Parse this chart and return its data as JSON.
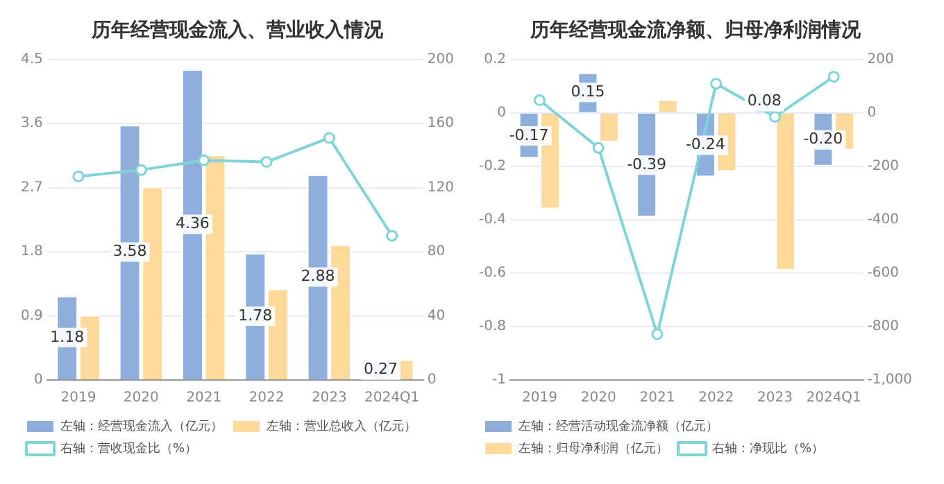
{
  "chart_data": [
    {
      "type": "bar",
      "title": "历年经营现金流入、营业收入情况",
      "categories": [
        "2019",
        "2020",
        "2021",
        "2022",
        "2023",
        "2024Q1"
      ],
      "series": [
        {
          "name": "左轴：经营现金流入（亿元）",
          "color": "#8eaedc",
          "values": [
            1.18,
            3.58,
            4.36,
            1.78,
            2.88,
            0.27
          ],
          "value_labels": [
            "1.18",
            "3.58",
            "4.36",
            "1.78",
            "2.88",
            "0.27"
          ]
        },
        {
          "name": "左轴：营业总收入（亿元）",
          "color": "#ffd99a",
          "values": [
            0.91,
            2.71,
            3.16,
            1.28,
            1.9,
            0.29
          ]
        },
        {
          "name": "右轴：营收现金比（%）",
          "type": "line",
          "axis": "y2",
          "color": "#7fd4d8",
          "values": [
            127,
            131,
            137,
            136,
            151,
            90
          ]
        }
      ],
      "ylim": [
        0,
        4.5
      ],
      "yticks": [
        0,
        0.9,
        1.8,
        2.7,
        3.6,
        4.5
      ],
      "y2lim": [
        0,
        200
      ],
      "y2ticks": [
        0,
        40,
        80,
        120,
        160,
        200
      ],
      "grid": "y",
      "legend": "bottom",
      "marker": "circle"
    },
    {
      "type": "bar",
      "title": "历年经营现金流净额、归母净利润情况",
      "categories": [
        "2019",
        "2020",
        "2021",
        "2022",
        "2023",
        "2024Q1"
      ],
      "series": [
        {
          "name": "左轴：经营活动现金流净额（亿元）",
          "color": "#8eaedc",
          "values": [
            -0.17,
            0.15,
            -0.39,
            -0.24,
            0.08,
            -0.2
          ],
          "value_labels": [
            "-0.17",
            "0.15",
            "-0.39",
            "-0.24",
            "0.08",
            "-0.20"
          ]
        },
        {
          "name": "左轴：归母净利润（亿元）",
          "color": "#ffd99a",
          "values": [
            -0.36,
            -0.11,
            0.05,
            -0.22,
            -0.59,
            -0.14
          ]
        },
        {
          "name": "右轴：净现比（%）",
          "type": "line",
          "axis": "y2",
          "color": "#7fd4d8",
          "values": [
            47,
            -131,
            -829,
            109,
            -15,
            135
          ]
        }
      ],
      "ylim": [
        -1,
        0.2
      ],
      "yticks": [
        -1,
        -0.8,
        -0.6,
        -0.4,
        -0.2,
        0,
        0.2
      ],
      "y2lim": [
        -1000,
        200
      ],
      "y2ticks": [
        {
          "value": -1000,
          "label": "-1,000"
        },
        -800,
        -600,
        -400,
        -200,
        0,
        200
      ],
      "grid": "y",
      "legend": "bottom",
      "marker": "circle"
    }
  ]
}
